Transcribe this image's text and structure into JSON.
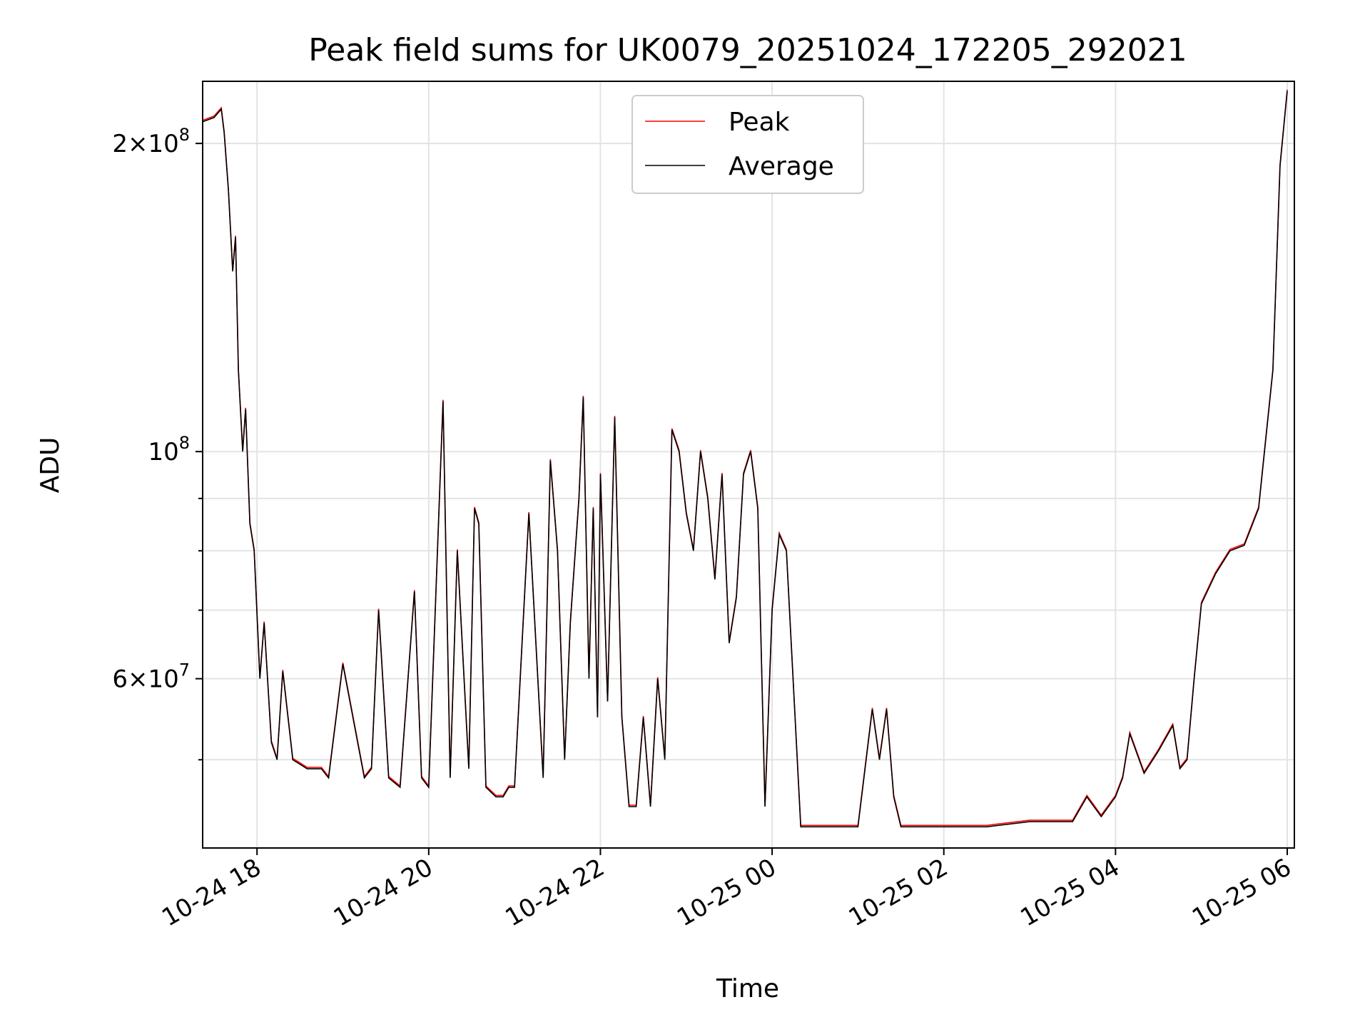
{
  "chart_data": {
    "type": "line",
    "title": "Peak field sums for UK0079_20251024_172205_292021",
    "xlabel": "Time",
    "ylabel": "ADU",
    "yscale": "log",
    "xlim": [
      "2025-10-24 17:22",
      "2025-10-25 06:05"
    ],
    "ylim": [
      41000000,
      230000000
    ],
    "grid": true,
    "legend_position": "top-center",
    "x_tick_labels": [
      "10-24 18",
      "10-24 20",
      "10-24 22",
      "10-25 00",
      "10-25 02",
      "10-25 04",
      "10-25 06"
    ],
    "x_tick_values": [
      "2025-10-24 18:00",
      "2025-10-24 20:00",
      "2025-10-24 22:00",
      "2025-10-25 00:00",
      "2025-10-25 02:00",
      "2025-10-25 04:00",
      "2025-10-25 06:00"
    ],
    "y_major_ticks": [
      {
        "value": 100000000,
        "mantissa": "",
        "exponent": "8"
      },
      {
        "value": 200000000,
        "mantissa": "2",
        "exponent": "8"
      },
      {
        "value": 60000000,
        "mantissa": "6",
        "exponent": "7"
      }
    ],
    "y_grid_values": [
      50000000,
      60000000,
      70000000,
      80000000,
      90000000,
      100000000,
      200000000
    ],
    "series": [
      {
        "name": "Peak",
        "color": "#ff0000"
      },
      {
        "name": "Average",
        "color": "#000000"
      }
    ],
    "x": [
      "2025-10-24 17:22",
      "2025-10-24 17:30",
      "2025-10-24 17:35",
      "2025-10-24 17:37",
      "2025-10-24 17:40",
      "2025-10-24 17:43",
      "2025-10-24 17:45",
      "2025-10-24 17:47",
      "2025-10-24 17:50",
      "2025-10-24 17:52",
      "2025-10-24 17:55",
      "2025-10-24 17:58",
      "2025-10-24 18:02",
      "2025-10-24 18:05",
      "2025-10-24 18:10",
      "2025-10-24 18:14",
      "2025-10-24 18:18",
      "2025-10-24 18:25",
      "2025-10-24 18:30",
      "2025-10-24 18:35",
      "2025-10-24 18:40",
      "2025-10-24 18:45",
      "2025-10-24 18:50",
      "2025-10-24 19:00",
      "2025-10-24 19:15",
      "2025-10-24 19:20",
      "2025-10-24 19:25",
      "2025-10-24 19:32",
      "2025-10-24 19:40",
      "2025-10-24 19:50",
      "2025-10-24 19:55",
      "2025-10-24 20:00",
      "2025-10-24 20:10",
      "2025-10-24 20:15",
      "2025-10-24 20:20",
      "2025-10-24 20:28",
      "2025-10-24 20:32",
      "2025-10-24 20:35",
      "2025-10-24 20:40",
      "2025-10-24 20:47",
      "2025-10-24 20:52",
      "2025-10-24 20:56",
      "2025-10-24 21:00",
      "2025-10-24 21:10",
      "2025-10-24 21:20",
      "2025-10-24 21:25",
      "2025-10-24 21:30",
      "2025-10-24 21:35",
      "2025-10-24 21:39",
      "2025-10-24 21:45",
      "2025-10-24 21:48",
      "2025-10-24 21:52",
      "2025-10-24 21:55",
      "2025-10-24 21:58",
      "2025-10-24 22:00",
      "2025-10-24 22:05",
      "2025-10-24 22:10",
      "2025-10-24 22:15",
      "2025-10-24 22:20",
      "2025-10-24 22:25",
      "2025-10-24 22:30",
      "2025-10-24 22:35",
      "2025-10-24 22:40",
      "2025-10-24 22:45",
      "2025-10-24 22:50",
      "2025-10-24 22:55",
      "2025-10-24 23:00",
      "2025-10-24 23:05",
      "2025-10-24 23:10",
      "2025-10-24 23:15",
      "2025-10-24 23:20",
      "2025-10-24 23:25",
      "2025-10-24 23:30",
      "2025-10-24 23:35",
      "2025-10-24 23:40",
      "2025-10-24 23:45",
      "2025-10-24 23:50",
      "2025-10-24 23:55",
      "2025-10-25 00:00",
      "2025-10-25 00:05",
      "2025-10-25 00:10",
      "2025-10-25 00:20",
      "2025-10-25 00:40",
      "2025-10-25 01:00",
      "2025-10-25 01:10",
      "2025-10-25 01:15",
      "2025-10-25 01:20",
      "2025-10-25 01:25",
      "2025-10-25 01:30",
      "2025-10-25 01:40",
      "2025-10-25 02:00",
      "2025-10-25 02:30",
      "2025-10-25 03:00",
      "2025-10-25 03:20",
      "2025-10-25 03:30",
      "2025-10-25 03:40",
      "2025-10-25 03:50",
      "2025-10-25 04:00",
      "2025-10-25 04:05",
      "2025-10-25 04:10",
      "2025-10-25 04:20",
      "2025-10-25 04:30",
      "2025-10-25 04:40",
      "2025-10-25 04:45",
      "2025-10-25 04:50",
      "2025-10-25 04:55",
      "2025-10-25 05:00",
      "2025-10-25 05:10",
      "2025-10-25 05:20",
      "2025-10-25 05:30",
      "2025-10-25 05:40",
      "2025-10-25 05:50",
      "2025-10-25 05:55",
      "2025-10-25 06:00"
    ],
    "y": [
      210000000,
      212000000,
      216000000,
      205000000,
      180000000,
      150000000,
      162000000,
      120000000,
      100000000,
      110000000,
      85000000,
      80000000,
      60000000,
      68000000,
      52000000,
      50000000,
      61000000,
      50000000,
      49500000,
      49000000,
      49000000,
      49000000,
      48000000,
      62000000,
      48000000,
      49000000,
      70000000,
      48000000,
      47000000,
      73000000,
      48000000,
      47000000,
      112000000,
      48000000,
      80000000,
      49000000,
      88000000,
      85000000,
      47000000,
      46000000,
      46000000,
      47000000,
      47000000,
      87000000,
      48000000,
      98000000,
      80000000,
      50000000,
      68000000,
      90000000,
      113000000,
      60000000,
      88000000,
      55000000,
      95000000,
      57000000,
      108000000,
      55000000,
      45000000,
      45000000,
      55000000,
      45000000,
      60000000,
      50000000,
      105000000,
      100000000,
      87000000,
      80000000,
      100000000,
      90000000,
      75000000,
      95000000,
      65000000,
      72000000,
      95000000,
      100000000,
      88000000,
      45000000,
      70000000,
      83000000,
      80000000,
      43000000,
      43000000,
      43000000,
      56000000,
      50000000,
      56000000,
      46000000,
      43000000,
      43000000,
      43000000,
      43000000,
      43500000,
      43500000,
      43500000,
      46000000,
      44000000,
      46000000,
      48000000,
      53000000,
      48500000,
      51000000,
      54000000,
      49000000,
      50000000,
      60000000,
      71000000,
      76000000,
      80000000,
      81000000,
      88000000,
      120000000,
      190000000,
      225000000
    ]
  }
}
